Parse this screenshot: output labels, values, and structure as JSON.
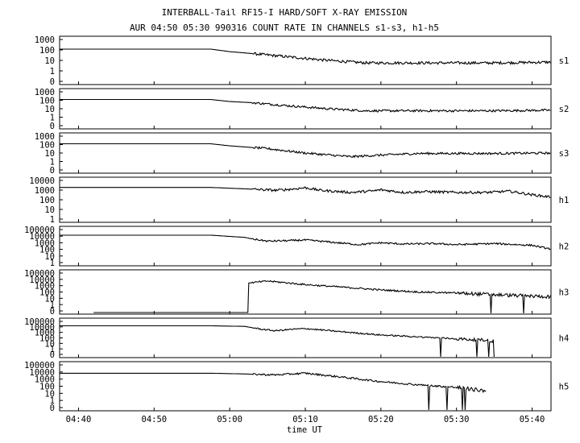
{
  "title_line1": "INTERBALL-Tail RF15-I HARD/SOFT X-RAY EMISSION",
  "title_line2": "AUR 04:50 05:30 990316  COUNT RATE IN CHANNELS s1-s3, h1-h5",
  "chart_data": {
    "type": "line",
    "xlabel": "time UT",
    "x_range_minutes_ut": [
      277.5,
      342.5
    ],
    "x_ticks": [
      {
        "t": 280,
        "label": "04:40"
      },
      {
        "t": 290,
        "label": "04:50"
      },
      {
        "t": 300,
        "label": "05:00"
      },
      {
        "t": 310,
        "label": "05:10"
      },
      {
        "t": 320,
        "label": "05:20"
      },
      {
        "t": 330,
        "label": "05:30"
      },
      {
        "t": 340,
        "label": "05:40"
      }
    ],
    "y_scale": "log",
    "panels": [
      {
        "name": "s1",
        "y_ticks": [
          "1000",
          "100",
          "10",
          "1",
          "0"
        ],
        "y_range": [
          0.1,
          1000
        ],
        "series": [
          [
            277.5,
            100
          ],
          [
            297.5,
            100
          ],
          [
            300,
            60
          ],
          [
            303,
            40
          ],
          [
            308,
            20
          ],
          [
            313,
            10
          ],
          [
            318,
            6
          ],
          [
            325,
            6
          ],
          [
            335,
            6
          ],
          [
            342.5,
            7
          ]
        ]
      },
      {
        "name": "s2",
        "y_ticks": [
          "1000",
          "100",
          "10",
          "1",
          "0"
        ],
        "y_range": [
          0.1,
          1000
        ],
        "series": [
          [
            277.5,
            100
          ],
          [
            297.5,
            100
          ],
          [
            300,
            60
          ],
          [
            303,
            45
          ],
          [
            308,
            20
          ],
          [
            313,
            10
          ],
          [
            318,
            6
          ],
          [
            325,
            6
          ],
          [
            335,
            6
          ],
          [
            342.5,
            7
          ]
        ]
      },
      {
        "name": "s3",
        "y_ticks": [
          "1000",
          "100",
          "10",
          "1",
          "0"
        ],
        "y_range": [
          0.1,
          1000
        ],
        "series": [
          [
            277.5,
            100
          ],
          [
            297.5,
            100
          ],
          [
            300,
            60
          ],
          [
            305,
            30
          ],
          [
            310,
            10
          ],
          [
            316,
            4
          ],
          [
            320,
            6
          ],
          [
            325,
            9
          ],
          [
            335,
            9
          ],
          [
            342.5,
            10
          ]
        ]
      },
      {
        "name": "h1",
        "y_ticks": [
          "10000",
          "1000",
          "100",
          "10",
          "1"
        ],
        "y_range": [
          1,
          10000
        ],
        "series": [
          [
            277.5,
            1500
          ],
          [
            297.5,
            1500
          ],
          [
            302,
            1100
          ],
          [
            306,
            800
          ],
          [
            308,
            1000
          ],
          [
            310,
            1400
          ],
          [
            312,
            800
          ],
          [
            316,
            500
          ],
          [
            319,
            700
          ],
          [
            320,
            900
          ],
          [
            323,
            500
          ],
          [
            326,
            600
          ],
          [
            330,
            500
          ],
          [
            334,
            500
          ],
          [
            337,
            650
          ],
          [
            340,
            300
          ],
          [
            342.5,
            180
          ]
        ]
      },
      {
        "name": "h2",
        "y_ticks": [
          "100000",
          "10000",
          "1000",
          "100",
          "10",
          "1"
        ],
        "y_range": [
          1,
          100000
        ],
        "series": [
          [
            277.5,
            10000
          ],
          [
            297.5,
            10000
          ],
          [
            302,
            5000
          ],
          [
            303,
            3000
          ],
          [
            305,
            1500
          ],
          [
            308,
            1800
          ],
          [
            310,
            2200
          ],
          [
            313,
            1200
          ],
          [
            317,
            500
          ],
          [
            320,
            900
          ],
          [
            323,
            600
          ],
          [
            327,
            700
          ],
          [
            330,
            500
          ],
          [
            335,
            700
          ],
          [
            340,
            400
          ],
          [
            342.5,
            120
          ]
        ]
      },
      {
        "name": "h3",
        "y_ticks": [
          "100000",
          "10000",
          "1000",
          "100",
          "10",
          "1",
          "0"
        ],
        "y_range": [
          0.1,
          100000
        ],
        "series": [
          [
            282,
            0.1
          ],
          [
            300,
            0.1
          ],
          [
            302.5,
            0.1
          ],
          [
            302.5,
            2000
          ],
          [
            305,
            4000
          ],
          [
            310,
            1200
          ],
          [
            315,
            500
          ],
          [
            320,
            200
          ],
          [
            325,
            100
          ],
          [
            330,
            70
          ],
          [
            335,
            40
          ],
          [
            340,
            25
          ],
          [
            342.5,
            20
          ]
        ]
      },
      {
        "name": "h4",
        "y_ticks": [
          "100000",
          "10000",
          "1000",
          "100",
          "10",
          "1",
          "0"
        ],
        "y_range": [
          0.1,
          100000
        ],
        "series": [
          [
            277.5,
            10000
          ],
          [
            297.5,
            10000
          ],
          [
            302,
            8000
          ],
          [
            304,
            3000
          ],
          [
            306,
            1500
          ],
          [
            308,
            2500
          ],
          [
            310,
            3500
          ],
          [
            315,
            1000
          ],
          [
            320,
            300
          ],
          [
            325,
            150
          ],
          [
            330,
            70
          ],
          [
            334,
            40
          ],
          [
            335,
            30
          ]
        ]
      },
      {
        "name": "h5",
        "y_ticks": [
          "100000",
          "10000",
          "1000",
          "100",
          "10",
          "1",
          "0"
        ],
        "y_range": [
          0.1,
          100000
        ],
        "series": [
          [
            277.5,
            5000
          ],
          [
            297.5,
            5000
          ],
          [
            302,
            4000
          ],
          [
            306,
            3000
          ],
          [
            310,
            5000
          ],
          [
            315,
            1500
          ],
          [
            320,
            400
          ],
          [
            325,
            150
          ],
          [
            330,
            70
          ],
          [
            333,
            30
          ],
          [
            334,
            25
          ]
        ]
      }
    ]
  }
}
